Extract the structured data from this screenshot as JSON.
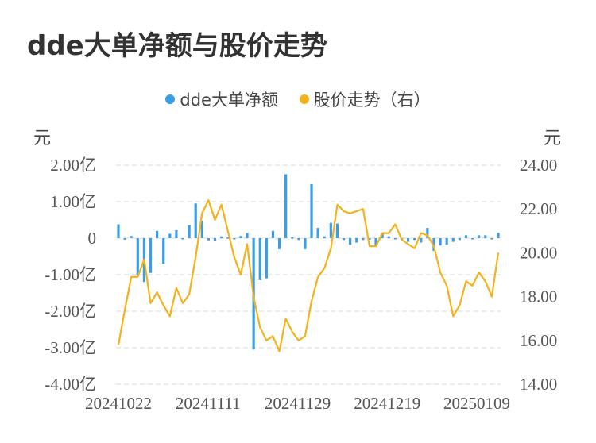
{
  "title": "dde大单净额与股价走势",
  "legend": [
    {
      "label": "dde大单净额",
      "color": "#3a9ee6"
    },
    {
      "label": "股价走势（右）",
      "color": "#f3b21b"
    }
  ],
  "units": {
    "left": "元",
    "right": "元"
  },
  "chart_data": {
    "type": "bar+line",
    "title": "dde大单净额与股价走势",
    "x_tick_labels": [
      "20241022",
      "20241111",
      "20241129",
      "20241219",
      "20250109"
    ],
    "left_axis": {
      "ticks": [
        "2.00亿",
        "1.00亿",
        "0",
        "-1.00亿",
        "-2.00亿",
        "-3.00亿",
        "-4.00亿"
      ],
      "ylim": [
        -4.0,
        2.0
      ],
      "unit": "亿元"
    },
    "right_axis": {
      "ticks": [
        "24.00",
        "22.00",
        "20.00",
        "18.00",
        "16.00",
        "14.00"
      ],
      "ylim": [
        14.0,
        24.0
      ]
    },
    "grid": true,
    "legend_position": "top-center",
    "series": [
      {
        "name": "dde大单净额",
        "type": "bar",
        "color": "#3a9ee6",
        "values": [
          0.38,
          -0.04,
          0.06,
          -1.0,
          -1.2,
          -0.95,
          0.2,
          -0.7,
          0.12,
          0.22,
          -0.03,
          0.35,
          0.95,
          0.48,
          -0.06,
          -0.08,
          0.05,
          0.02,
          -0.03,
          0.06,
          0.14,
          -3.05,
          -1.15,
          -1.1,
          0.2,
          -0.3,
          1.75,
          0.02,
          -0.05,
          -0.3,
          1.48,
          0.28,
          0.05,
          0.42,
          0.4,
          -0.05,
          -0.18,
          -0.12,
          -0.05,
          -0.04,
          -0.2,
          0.12,
          0.05,
          -0.02,
          -0.05,
          -0.1,
          -0.05,
          -0.12,
          0.28,
          -0.35,
          -0.2,
          -0.18,
          -0.1,
          -0.05,
          0.08,
          -0.03,
          0.08,
          0.08,
          -0.03,
          0.15
        ]
      },
      {
        "name": "股价走势（右）",
        "type": "line",
        "color": "#f3b21b",
        "axis": "right",
        "values": [
          15.8,
          17.4,
          18.9,
          18.9,
          19.7,
          17.7,
          18.2,
          17.6,
          17.1,
          18.4,
          17.7,
          18.1,
          19.8,
          21.8,
          22.4,
          21.5,
          22.2,
          21.0,
          19.8,
          19.0,
          20.4,
          18.0,
          16.6,
          16.0,
          16.2,
          15.5,
          17.0,
          16.4,
          16.0,
          16.2,
          17.8,
          18.9,
          19.3,
          20.2,
          22.2,
          21.9,
          21.8,
          21.9,
          22.0,
          20.3,
          20.3,
          20.9,
          20.9,
          21.3,
          20.6,
          20.4,
          20.2,
          20.9,
          20.8,
          20.3,
          19.1,
          18.5,
          17.1,
          17.6,
          18.7,
          18.5,
          19.1,
          18.7,
          18.0,
          20.0
        ]
      }
    ]
  }
}
